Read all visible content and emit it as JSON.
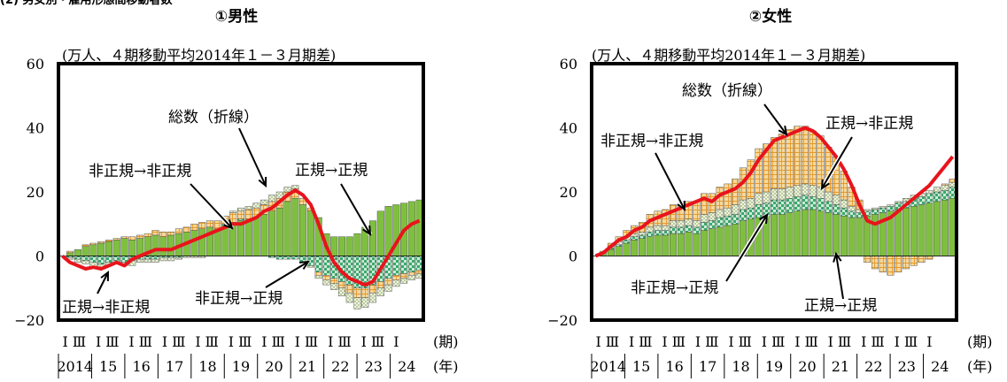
{
  "header": {
    "cropped_title": "(2) 男女別・雇用形態間移動者数"
  },
  "chart_data": [
    {
      "type": "bar",
      "stacked": true,
      "title": "①男性",
      "unit_note": "(万人、４期移動平均2014年１－３月期差)",
      "ylim": [
        -20,
        60
      ],
      "yticks": [
        "60",
        "40",
        "20",
        "0",
        "−20"
      ],
      "x_period_label": "(期)",
      "x_year_label": "(年)",
      "quarter_labels": [
        "Ⅰ",
        "Ⅲ"
      ],
      "year_labels": [
        "2014",
        "15",
        "16",
        "17",
        "18",
        "19",
        "20",
        "21",
        "22",
        "23",
        "24"
      ],
      "series": [
        {
          "name": "正規→正規",
          "values": [
            0,
            1,
            2,
            3,
            3.5,
            4,
            4.5,
            5,
            5.5,
            5,
            5.5,
            6,
            6.5,
            6,
            6.5,
            7,
            7.5,
            8,
            8.5,
            9,
            8.5,
            9.5,
            10,
            11,
            11.5,
            12,
            13,
            14,
            15,
            17,
            18,
            16,
            14,
            12,
            7,
            6,
            6,
            6,
            7,
            9,
            11,
            14,
            15.5,
            16,
            16.5,
            17,
            17.5
          ]
        },
        {
          "name": "非正規→正規",
          "values": [
            0,
            -0.5,
            -1,
            -1.5,
            -2,
            -2.5,
            -2,
            -1.5,
            -2,
            -1.5,
            -1,
            -1,
            -1,
            -0.5,
            -0.5,
            -0.5,
            0,
            0,
            0,
            0,
            0,
            0.5,
            0.5,
            0.5,
            0,
            0,
            0,
            -0.5,
            -1,
            -1,
            -1,
            -2,
            -3,
            -5,
            -6,
            -7,
            -8,
            -9,
            -10,
            -10,
            -9,
            -8,
            -7,
            -6,
            -5.5,
            -5,
            -4.5
          ]
        },
        {
          "name": "非正規→非正規",
          "values": [
            0,
            0.5,
            0,
            0.5,
            0.5,
            0.5,
            0.5,
            0.5,
            0.5,
            1,
            1,
            1,
            1.5,
            1.5,
            1,
            1.5,
            1.5,
            2,
            2,
            2,
            2.5,
            2.5,
            3,
            2.5,
            3,
            3,
            3,
            3,
            3,
            3,
            3,
            2,
            1,
            -1,
            -1.5,
            -1.5,
            -2,
            -2.5,
            -3,
            -3,
            -2.5,
            -2,
            -2,
            -1.5,
            -1.5,
            -1,
            -1
          ]
        },
        {
          "name": "正規→非正規",
          "values": [
            0,
            -0.5,
            -1,
            -1,
            -1.5,
            -1.5,
            -1,
            -1,
            -1,
            -1.5,
            -1,
            -1,
            -1,
            -1,
            -1,
            -0.5,
            -0.5,
            -0.5,
            -0.5,
            0,
            0,
            0,
            0.5,
            1,
            1,
            1.5,
            1.5,
            2,
            2,
            1.5,
            1,
            0,
            -0.5,
            -1,
            -1.5,
            -2,
            -2.5,
            -3,
            -3.5,
            -3,
            -3,
            -2.5,
            -2,
            -2,
            -1.5,
            -1.5,
            -1.5
          ]
        }
      ],
      "total": {
        "name": "総数（折線）",
        "values": [
          0,
          -2,
          -3,
          -4,
          -3.5,
          -4,
          -3,
          -2,
          -3,
          -1,
          0,
          1,
          2,
          2,
          2,
          3,
          4,
          5,
          6,
          7,
          8,
          9,
          10,
          10,
          11,
          12,
          14,
          15,
          17,
          19,
          20.5,
          19,
          16,
          10,
          3,
          -2,
          -5,
          -7,
          -8,
          -9,
          -8,
          -4,
          0,
          4,
          8,
          10,
          11
        ]
      },
      "annotations": [
        "総数（折線）",
        "非正規→非正規",
        "正規→正規",
        "正規→非正規",
        "非正規→正規"
      ]
    },
    {
      "type": "bar",
      "stacked": true,
      "title": "②女性",
      "unit_note": "(万人、４期移動平均2014年１－３月期差)",
      "ylim": [
        -20,
        60
      ],
      "yticks": [
        "60",
        "40",
        "20",
        "0",
        "−20"
      ],
      "x_period_label": "(期)",
      "x_year_label": "(年)",
      "quarter_labels": [
        "Ⅰ",
        "Ⅲ"
      ],
      "year_labels": [
        "2014",
        "15",
        "16",
        "17",
        "18",
        "19",
        "20",
        "21",
        "22",
        "23",
        "24"
      ],
      "series": [
        {
          "name": "正規→正規",
          "values": [
            0,
            1,
            2,
            3,
            4,
            5,
            5.5,
            6,
            6.5,
            6.5,
            7,
            7,
            7.5,
            7,
            8,
            8.5,
            9,
            9.5,
            10,
            11,
            11.5,
            12,
            12.5,
            13,
            13,
            13.5,
            14,
            14.5,
            14.5,
            14,
            13.5,
            13,
            12.5,
            12,
            12,
            12.5,
            13,
            13.5,
            14,
            14.5,
            15,
            15.5,
            16,
            16.5,
            17,
            17.5,
            18
          ]
        },
        {
          "name": "非正規→正規",
          "values": [
            0,
            0,
            0.5,
            0.5,
            1,
            1,
            1,
            1.5,
            1.5,
            1.5,
            2,
            2,
            2,
            2,
            2.5,
            2.5,
            3,
            3,
            3,
            3.5,
            3.5,
            4,
            4,
            4.5,
            4.5,
            4.5,
            4.5,
            4.5,
            4,
            4,
            3.5,
            3,
            2.5,
            2,
            1.5,
            1.5,
            1.5,
            1.5,
            1.5,
            2,
            2,
            2.5,
            2.5,
            3,
            3,
            3,
            3.5
          ]
        },
        {
          "name": "正規→非正規",
          "values": [
            0,
            0.5,
            0.5,
            1,
            1,
            1,
            1,
            1.5,
            1.5,
            1.5,
            2,
            2,
            2,
            2,
            2.5,
            2.5,
            2.5,
            2.5,
            3,
            3,
            3,
            3.5,
            3.5,
            3.5,
            3.5,
            3.5,
            3.5,
            3.5,
            3.5,
            3.5,
            3,
            3,
            2.5,
            1.5,
            1,
            0.5,
            0.5,
            0.5,
            0.5,
            0.5,
            1,
            1,
            1,
            1,
            1.5,
            1.5,
            1.5
          ]
        },
        {
          "name": "非正規→非正規",
          "values": [
            0,
            0,
            1,
            1.5,
            2,
            2.5,
            3,
            4,
            4.5,
            5,
            5,
            5,
            5.5,
            6,
            6.5,
            6,
            7,
            7.5,
            8,
            10,
            12,
            14,
            15,
            16,
            17,
            18,
            18.5,
            18,
            17,
            16,
            14,
            12,
            9,
            6,
            3,
            -2,
            -4,
            -5,
            -6,
            -5,
            -4,
            -3,
            -2,
            -1,
            0,
            0.5,
            1
          ]
        }
      ],
      "total": {
        "name": "総数（折線）",
        "values": [
          0,
          1,
          3,
          5,
          6,
          8,
          9,
          11,
          12,
          13,
          14,
          15,
          16,
          17,
          18,
          17,
          19,
          20,
          21,
          23,
          26,
          30,
          33,
          36,
          37,
          38,
          39,
          40,
          39,
          37,
          34,
          31,
          27,
          22,
          16,
          11,
          10,
          11,
          12,
          14,
          16,
          18,
          20,
          22,
          25,
          28,
          31
        ]
      },
      "annotations": [
        "総数（折線）",
        "正規→非正規",
        "非正規→非正規",
        "非正規→正規",
        "正規→正規"
      ]
    }
  ],
  "colors": {
    "regular_to_regular": "#7fbf3f",
    "irregular_to_regular": "#39a56a",
    "irregular_to_irregular": "#f2c777",
    "regular_to_irregular": "#dde7c9",
    "total_line": "#e8141c",
    "frame": "#000000"
  }
}
